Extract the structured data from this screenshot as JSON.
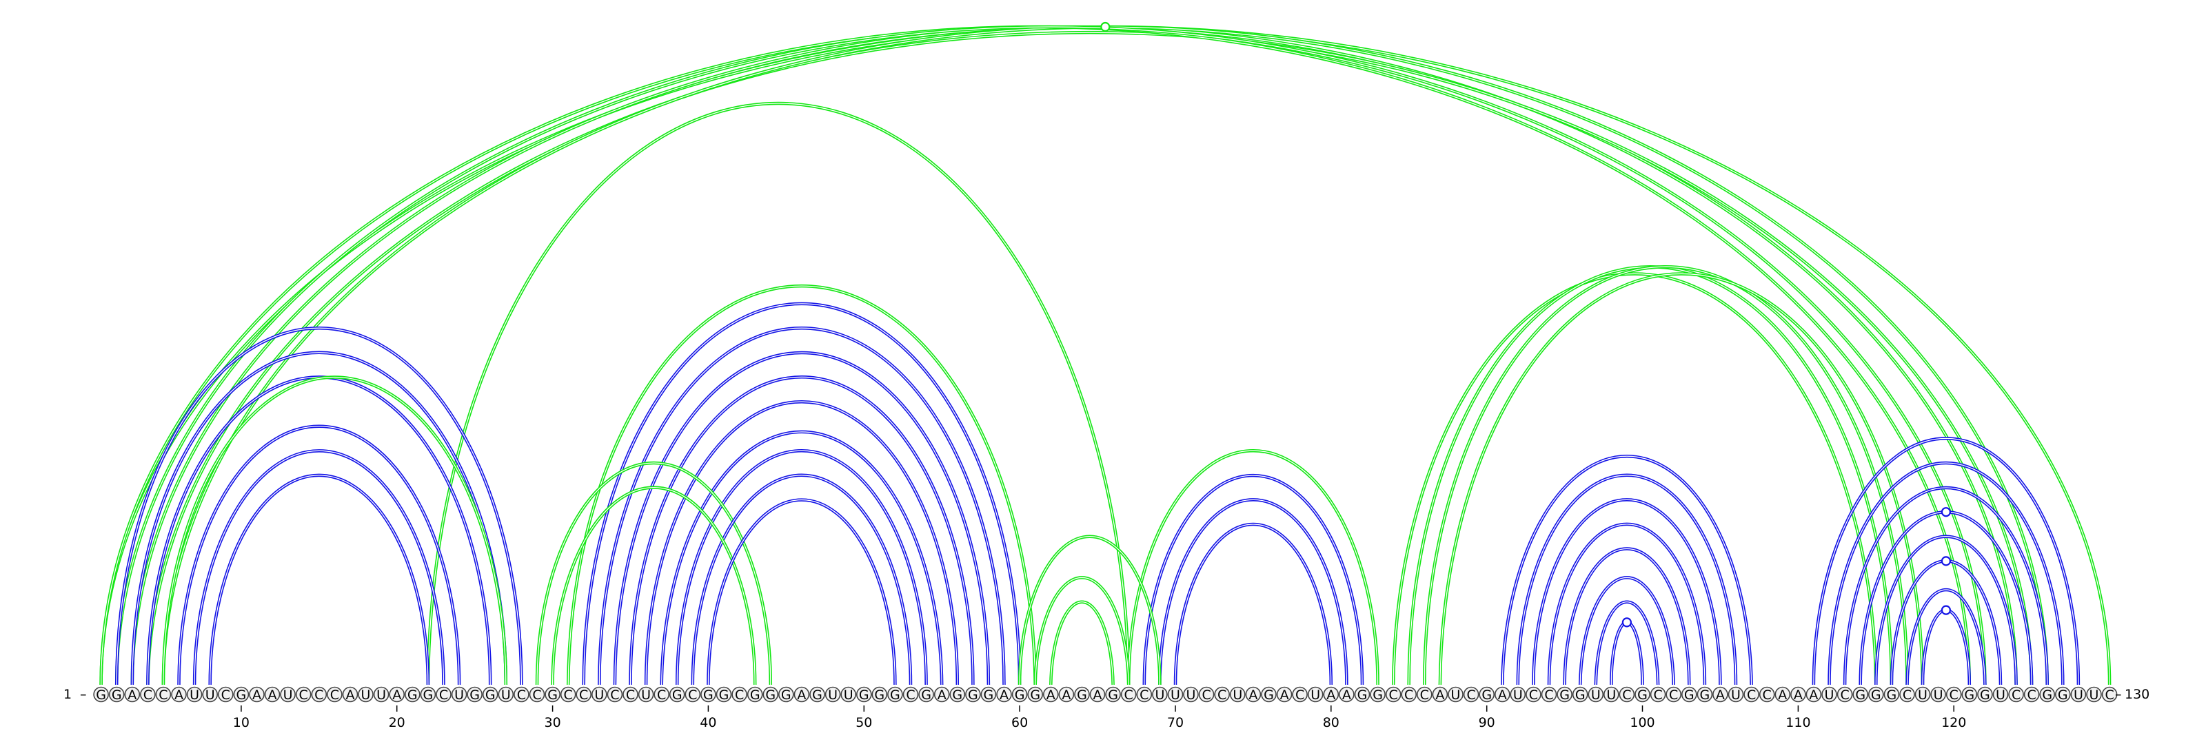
{
  "sequence": "GGACCAUUCGAAUCCCAUUAGGCUGGUCCGCCUCCUCGCGGCGGGAGUUGGGCGAGGGAGGAAGAGCCUUUCCUAGACUAAGGCCCAUCGAUCCGGUUCGCCGGAUCCAAAUCGGGCUUCGGUCCGGUUC",
  "start_label": "1",
  "end_label": "130",
  "tick_labels": [
    "10",
    "20",
    "30",
    "40",
    "50",
    "60",
    "70",
    "80",
    "90",
    "100",
    "110",
    "120"
  ],
  "colors": {
    "blue": "#1414e6",
    "green": "#14e614"
  },
  "arcs": [
    {
      "i": 2,
      "j": 28,
      "color": "blue"
    },
    {
      "i": 3,
      "j": 27,
      "color": "blue"
    },
    {
      "i": 4,
      "j": 26,
      "color": "blue"
    },
    {
      "i": 6,
      "j": 24,
      "color": "blue"
    },
    {
      "i": 7,
      "j": 23,
      "color": "blue"
    },
    {
      "i": 8,
      "j": 22,
      "color": "blue"
    },
    {
      "i": 5,
      "j": 27,
      "color": "green"
    },
    {
      "i": 32,
      "j": 60,
      "color": "blue"
    },
    {
      "i": 33,
      "j": 59,
      "color": "blue"
    },
    {
      "i": 34,
      "j": 58,
      "color": "blue"
    },
    {
      "i": 35,
      "j": 57,
      "color": "blue"
    },
    {
      "i": 36,
      "j": 56,
      "color": "blue"
    },
    {
      "i": 37,
      "j": 55,
      "color": "blue"
    },
    {
      "i": 38,
      "j": 54,
      "color": "blue"
    },
    {
      "i": 39,
      "j": 53,
      "color": "blue"
    },
    {
      "i": 40,
      "j": 52,
      "color": "blue"
    },
    {
      "i": 31,
      "j": 61,
      "color": "green"
    },
    {
      "i": 68,
      "j": 82,
      "color": "blue"
    },
    {
      "i": 69,
      "j": 81,
      "color": "blue"
    },
    {
      "i": 70,
      "j": 80,
      "color": "blue"
    },
    {
      "i": 67,
      "j": 83,
      "color": "green"
    },
    {
      "i": 91,
      "j": 107,
      "color": "blue"
    },
    {
      "i": 92,
      "j": 106,
      "color": "blue"
    },
    {
      "i": 93,
      "j": 105,
      "color": "blue"
    },
    {
      "i": 94,
      "j": 104,
      "color": "blue"
    },
    {
      "i": 95,
      "j": 103,
      "color": "blue"
    },
    {
      "i": 96,
      "j": 102,
      "color": "blue"
    },
    {
      "i": 97,
      "j": 101,
      "color": "blue"
    },
    {
      "i": 98,
      "j": 100,
      "color": "blue"
    },
    {
      "i": 111,
      "j": 128,
      "color": "blue"
    },
    {
      "i": 112,
      "j": 127,
      "color": "blue"
    },
    {
      "i": 113,
      "j": 126,
      "color": "blue"
    },
    {
      "i": 114,
      "j": 125,
      "color": "blue"
    },
    {
      "i": 115,
      "j": 124,
      "color": "blue"
    },
    {
      "i": 116,
      "j": 123,
      "color": "blue"
    },
    {
      "i": 117,
      "j": 122,
      "color": "blue"
    },
    {
      "i": 118,
      "j": 121,
      "color": "blue"
    },
    {
      "i": 1,
      "j": 121,
      "color": "green"
    },
    {
      "i": 2,
      "j": 122,
      "color": "green"
    },
    {
      "i": 3,
      "j": 124,
      "color": "green"
    },
    {
      "i": 4,
      "j": 125,
      "color": "green"
    },
    {
      "i": 5,
      "j": 126,
      "color": "green"
    },
    {
      "i": 1,
      "j": 130,
      "color": "green"
    },
    {
      "i": 22,
      "j": 67,
      "color": "green"
    },
    {
      "i": 29,
      "j": 44,
      "color": "green"
    },
    {
      "i": 30,
      "j": 43,
      "color": "green"
    },
    {
      "i": 60,
      "j": 69,
      "color": "green"
    },
    {
      "i": 61,
      "j": 67,
      "color": "green"
    },
    {
      "i": 62,
      "j": 66,
      "color": "green"
    },
    {
      "i": 84,
      "j": 115,
      "color": "green"
    },
    {
      "i": 85,
      "j": 116,
      "color": "green"
    },
    {
      "i": 86,
      "j": 117,
      "color": "green"
    },
    {
      "i": 87,
      "j": 118,
      "color": "green"
    }
  ],
  "markers": [
    {
      "i": 1,
      "j": 130,
      "color": "green"
    },
    {
      "i": 116,
      "j": 123,
      "color": "blue"
    },
    {
      "i": 118,
      "j": 121,
      "color": "blue"
    },
    {
      "i": 114,
      "j": 125,
      "color": "blue"
    },
    {
      "i": 98,
      "j": 100,
      "color": "blue"
    }
  ]
}
